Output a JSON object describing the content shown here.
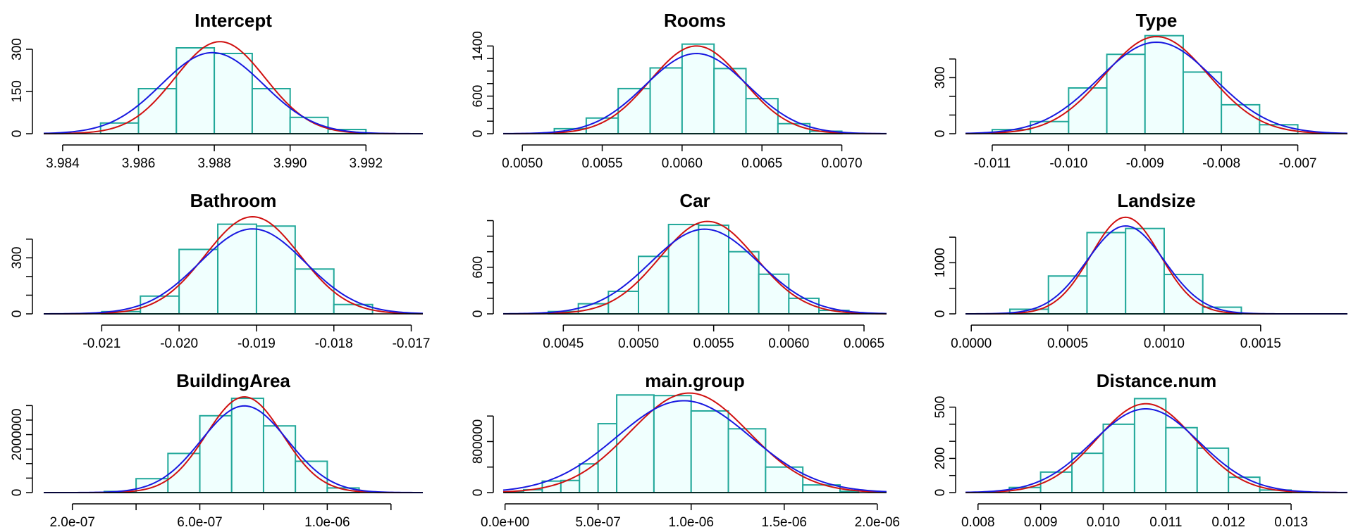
{
  "chart_data": [
    {
      "type": "histogram",
      "title": "Intercept",
      "xlim": [
        3.9835,
        3.9935
      ],
      "ylim": [
        0,
        345
      ],
      "x_ticks": [
        3.984,
        3.986,
        3.988,
        3.99,
        3.992
      ],
      "x_tick_labels": [
        "3.984",
        "3.986",
        "3.988",
        "3.990",
        "3.992"
      ],
      "y_ticks": [
        0,
        150,
        300
      ],
      "y_tick_labels": [
        "0",
        "150",
        "300"
      ],
      "bins": [
        {
          "x0": 3.985,
          "x1": 3.986,
          "count": 38
        },
        {
          "x0": 3.986,
          "x1": 3.987,
          "count": 160
        },
        {
          "x0": 3.987,
          "x1": 3.988,
          "count": 305
        },
        {
          "x0": 3.988,
          "x1": 3.989,
          "count": 285
        },
        {
          "x0": 3.989,
          "x1": 3.99,
          "count": 160
        },
        {
          "x0": 3.99,
          "x1": 3.991,
          "count": 58
        },
        {
          "x0": 3.991,
          "x1": 3.992,
          "count": 15
        }
      ],
      "curves": [
        {
          "color": "#d01010",
          "mean": 3.98815,
          "sd": 0.00119,
          "peak": 327
        },
        {
          "color": "#1818e0",
          "mean": 3.98795,
          "sd": 0.00135,
          "peak": 288
        }
      ]
    },
    {
      "type": "histogram",
      "title": "Rooms",
      "xlim": [
        0.00488,
        0.00728
      ],
      "ylim": [
        0,
        1550
      ],
      "x_ticks": [
        0.005,
        0.0055,
        0.006,
        0.0065,
        0.007
      ],
      "x_tick_labels": [
        "0.0050",
        "0.0055",
        "0.0060",
        "0.0065",
        "0.0070"
      ],
      "y_ticks": [
        0,
        200,
        400,
        600,
        800,
        1000,
        1200,
        1400
      ],
      "y_tick_labels": [
        "0",
        "",
        "",
        "600",
        "",
        "",
        "",
        "1400"
      ],
      "bins": [
        {
          "x0": 0.0052,
          "x1": 0.0054,
          "count": 80
        },
        {
          "x0": 0.0054,
          "x1": 0.0056,
          "count": 250
        },
        {
          "x0": 0.0056,
          "x1": 0.0058,
          "count": 720
        },
        {
          "x0": 0.0058,
          "x1": 0.006,
          "count": 1050
        },
        {
          "x0": 0.006,
          "x1": 0.0062,
          "count": 1430
        },
        {
          "x0": 0.0062,
          "x1": 0.0064,
          "count": 1040
        },
        {
          "x0": 0.0064,
          "x1": 0.0066,
          "count": 560
        },
        {
          "x0": 0.0066,
          "x1": 0.0068,
          "count": 160
        },
        {
          "x0": 0.0068,
          "x1": 0.007,
          "count": 40
        }
      ],
      "curves": [
        {
          "color": "#d01010",
          "mean": 0.00609,
          "sd": 0.00029,
          "peak": 1400
        },
        {
          "color": "#1818e0",
          "mean": 0.00609,
          "sd": 0.00032,
          "peak": 1280
        }
      ]
    },
    {
      "type": "histogram",
      "title": "Type",
      "xlim": [
        -0.01135,
        -0.00635
      ],
      "ylim": [
        0,
        520
      ],
      "x_ticks": [
        -0.011,
        -0.01,
        -0.009,
        -0.008,
        -0.007
      ],
      "x_tick_labels": [
        "-0.011",
        "-0.010",
        "-0.009",
        "-0.008",
        "-0.007"
      ],
      "y_ticks": [
        0,
        100,
        200,
        300,
        400
      ],
      "y_tick_labels": [
        "0",
        "",
        "",
        "300",
        ""
      ],
      "bins": [
        {
          "x0": -0.011,
          "x1": -0.0105,
          "count": 22
        },
        {
          "x0": -0.0105,
          "x1": -0.01,
          "count": 65
        },
        {
          "x0": -0.01,
          "x1": -0.0095,
          "count": 245
        },
        {
          "x0": -0.0095,
          "x1": -0.009,
          "count": 425
        },
        {
          "x0": -0.009,
          "x1": -0.0085,
          "count": 525
        },
        {
          "x0": -0.0085,
          "x1": -0.008,
          "count": 330
        },
        {
          "x0": -0.008,
          "x1": -0.0075,
          "count": 155
        },
        {
          "x0": -0.0075,
          "x1": -0.007,
          "count": 48
        }
      ],
      "curves": [
        {
          "color": "#d01010",
          "mean": -0.00885,
          "sd": 0.00068,
          "peak": 520
        },
        {
          "color": "#1818e0",
          "mean": -0.00885,
          "sd": 0.00075,
          "peak": 490
        }
      ]
    },
    {
      "type": "histogram",
      "title": "Bathroom",
      "xlim": [
        -0.02175,
        -0.01685
      ],
      "ylim": [
        0,
        520
      ],
      "x_ticks": [
        -0.021,
        -0.02,
        -0.019,
        -0.018,
        -0.017
      ],
      "x_tick_labels": [
        "-0.021",
        "-0.020",
        "-0.019",
        "-0.018",
        "-0.017"
      ],
      "y_ticks": [
        0,
        100,
        200,
        300,
        400
      ],
      "y_tick_labels": [
        "0",
        "",
        "",
        "300",
        ""
      ],
      "bins": [
        {
          "x0": -0.021,
          "x1": -0.0205,
          "count": 12
        },
        {
          "x0": -0.0205,
          "x1": -0.02,
          "count": 95
        },
        {
          "x0": -0.02,
          "x1": -0.0195,
          "count": 345
        },
        {
          "x0": -0.0195,
          "x1": -0.019,
          "count": 480
        },
        {
          "x0": -0.019,
          "x1": -0.0185,
          "count": 470
        },
        {
          "x0": -0.0185,
          "x1": -0.018,
          "count": 240
        },
        {
          "x0": -0.018,
          "x1": -0.0175,
          "count": 50
        }
      ],
      "curves": [
        {
          "color": "#d01010",
          "mean": -0.01905,
          "sd": 0.00061,
          "peak": 520
        },
        {
          "color": "#1818e0",
          "mean": -0.01905,
          "sd": 0.00068,
          "peak": 455
        }
      ]
    },
    {
      "type": "histogram",
      "title": "Car",
      "xlim": [
        0.0041,
        0.00665
      ],
      "ylim": [
        0,
        1250
      ],
      "x_ticks": [
        0.0045,
        0.005,
        0.0055,
        0.006,
        0.0065
      ],
      "x_tick_labels": [
        "0.0045",
        "0.0050",
        "0.0055",
        "0.0060",
        "0.0065"
      ],
      "y_ticks": [
        0,
        200,
        400,
        600,
        800,
        1000,
        1200
      ],
      "y_tick_labels": [
        "0",
        "",
        "",
        "600",
        "",
        "",
        ""
      ],
      "bins": [
        {
          "x0": 0.0044,
          "x1": 0.0046,
          "count": 30
        },
        {
          "x0": 0.0046,
          "x1": 0.0048,
          "count": 130
        },
        {
          "x0": 0.0048,
          "x1": 0.005,
          "count": 290
        },
        {
          "x0": 0.005,
          "x1": 0.0052,
          "count": 740
        },
        {
          "x0": 0.0052,
          "x1": 0.0054,
          "count": 1150
        },
        {
          "x0": 0.0054,
          "x1": 0.0056,
          "count": 1140
        },
        {
          "x0": 0.0056,
          "x1": 0.0058,
          "count": 800
        },
        {
          "x0": 0.0058,
          "x1": 0.006,
          "count": 510
        },
        {
          "x0": 0.006,
          "x1": 0.0062,
          "count": 200
        },
        {
          "x0": 0.0062,
          "x1": 0.0064,
          "count": 45
        }
      ],
      "curves": [
        {
          "color": "#d01010",
          "mean": 0.00546,
          "sd": 0.00032,
          "peak": 1190
        },
        {
          "color": "#1818e0",
          "mean": 0.00544,
          "sd": 0.00036,
          "peak": 1090
        }
      ]
    },
    {
      "type": "histogram",
      "title": "Landsize",
      "xlim": [
        -3e-05,
        0.00195
      ],
      "ylim": [
        0,
        1900
      ],
      "x_ticks": [
        0,
        0.0005,
        0.001,
        0.0015
      ],
      "x_tick_labels": [
        "0.0000",
        "0.0005",
        "0.0010",
        "0.0015"
      ],
      "y_ticks": [
        0,
        500,
        1000,
        1500
      ],
      "y_tick_labels": [
        "0",
        "",
        "1000",
        ""
      ],
      "bins": [
        {
          "x0": 0.0002,
          "x1": 0.0004,
          "count": 90
        },
        {
          "x0": 0.0004,
          "x1": 0.0006,
          "count": 740
        },
        {
          "x0": 0.0006,
          "x1": 0.0008,
          "count": 1590
        },
        {
          "x0": 0.0008,
          "x1": 0.001,
          "count": 1670
        },
        {
          "x0": 0.001,
          "x1": 0.0012,
          "count": 770
        },
        {
          "x0": 0.0012,
          "x1": 0.0014,
          "count": 130
        }
      ],
      "curves": [
        {
          "color": "#d01010",
          "mean": 0.0008,
          "sd": 0.00018,
          "peak": 1890
        },
        {
          "color": "#1818e0",
          "mean": 0.0008,
          "sd": 0.0002,
          "peak": 1720
        }
      ]
    },
    {
      "type": "histogram",
      "title": "BuildingArea",
      "xlim": [
        1.1e-07,
        1.3e-06
      ],
      "ylim": [
        0,
        3300000
      ],
      "x_ticks": [
        2e-07,
        4e-07,
        6e-07,
        8e-07,
        1e-06,
        1.2e-06
      ],
      "x_tick_labels": [
        "2.0e-07",
        "",
        "6.0e-07",
        "",
        "1.0e-06",
        ""
      ],
      "y_ticks": [
        0,
        500000,
        1000000,
        1500000,
        2000000,
        2500000,
        3000000
      ],
      "y_tick_labels": [
        "0",
        "",
        "",
        "",
        "2000000",
        "",
        ""
      ],
      "bins": [
        {
          "x0": 3e-07,
          "x1": 4e-07,
          "count": 40000
        },
        {
          "x0": 4e-07,
          "x1": 5e-07,
          "count": 480000
        },
        {
          "x0": 5e-07,
          "x1": 6e-07,
          "count": 1350000
        },
        {
          "x0": 6e-07,
          "x1": 7e-07,
          "count": 2650000
        },
        {
          "x0": 7e-07,
          "x1": 8e-07,
          "count": 3250000
        },
        {
          "x0": 8e-07,
          "x1": 9e-07,
          "count": 2300000
        },
        {
          "x0": 9e-07,
          "x1": 1e-06,
          "count": 1080000
        },
        {
          "x0": 1e-06,
          "x1": 1.1e-06,
          "count": 160000
        }
      ],
      "curves": [
        {
          "color": "#d01010",
          "mean": 7.4e-07,
          "sd": 1.2e-07,
          "peak": 3300000
        },
        {
          "color": "#1818e0",
          "mean": 7.4e-07,
          "sd": 1.35e-07,
          "peak": 2990000
        }
      ]
    },
    {
      "type": "histogram",
      "title": "main.group",
      "xlim": [
        -1e-08,
        2.05e-06
      ],
      "ylim": [
        0,
        1500000
      ],
      "x_ticks": [
        0,
        5e-07,
        1e-06,
        1.5e-06,
        2e-06
      ],
      "x_tick_labels": [
        "0.0e+00",
        "5.0e-07",
        "1.0e-06",
        "1.5e-06",
        "2.0e-06"
      ],
      "y_ticks": [
        0,
        400000,
        800000,
        1200000
      ],
      "y_tick_labels": [
        "0",
        "",
        "800000",
        ""
      ],
      "bins": [
        {
          "x0": 0,
          "x1": 1e-07,
          "count": 10000
        },
        {
          "x0": 1e-07,
          "x1": 2e-07,
          "count": 45000
        },
        {
          "x0": 2e-07,
          "x1": 3e-07,
          "count": 180000
        },
        {
          "x0": 3e-07,
          "x1": 4e-07,
          "count": 190000
        },
        {
          "x0": 4e-07,
          "x1": 5e-07,
          "count": 450000
        },
        {
          "x0": 5e-07,
          "x1": 6e-07,
          "count": 1080000
        },
        {
          "x0": 6e-07,
          "x1": 8e-07,
          "count": 1530000
        },
        {
          "x0": 8e-07,
          "x1": 1e-06,
          "count": 1520000
        },
        {
          "x0": 1e-06,
          "x1": 1.2e-06,
          "count": 1280000
        },
        {
          "x0": 1.2e-06,
          "x1": 1.4e-06,
          "count": 1000000
        },
        {
          "x0": 1.4e-06,
          "x1": 1.6e-06,
          "count": 400000
        },
        {
          "x0": 1.6e-06,
          "x1": 1.8e-06,
          "count": 120000
        },
        {
          "x0": 1.8e-06,
          "x1": 1.9e-06,
          "count": 20000
        }
      ],
      "curves": [
        {
          "color": "#d01010",
          "mean": 9.9e-07,
          "sd": 3.2e-07,
          "peak": 1560000
        },
        {
          "color": "#1818e0",
          "mean": 9.6e-07,
          "sd": 3.6e-07,
          "peak": 1440000
        }
      ]
    },
    {
      "type": "histogram",
      "title": "Distance.num",
      "xlim": [
        0.0078,
        0.0139
      ],
      "ylim": [
        0,
        560
      ],
      "x_ticks": [
        0.008,
        0.009,
        0.01,
        0.011,
        0.012,
        0.013
      ],
      "x_tick_labels": [
        "0.008",
        "0.009",
        "0.010",
        "0.011",
        "0.012",
        "0.013"
      ],
      "y_ticks": [
        0,
        100,
        200,
        300,
        400,
        500
      ],
      "y_tick_labels": [
        "0",
        "",
        "200",
        "",
        "",
        "500"
      ],
      "bins": [
        {
          "x0": 0.0085,
          "x1": 0.009,
          "count": 30
        },
        {
          "x0": 0.009,
          "x1": 0.0095,
          "count": 120
        },
        {
          "x0": 0.0095,
          "x1": 0.01,
          "count": 230
        },
        {
          "x0": 0.01,
          "x1": 0.0105,
          "count": 400
        },
        {
          "x0": 0.0105,
          "x1": 0.011,
          "count": 550
        },
        {
          "x0": 0.011,
          "x1": 0.0115,
          "count": 380
        },
        {
          "x0": 0.0115,
          "x1": 0.012,
          "count": 260
        },
        {
          "x0": 0.012,
          "x1": 0.0125,
          "count": 90
        },
        {
          "x0": 0.0125,
          "x1": 0.013,
          "count": 15
        }
      ],
      "curves": [
        {
          "color": "#d01010",
          "mean": 0.01068,
          "sd": 0.00078,
          "peak": 520
        },
        {
          "color": "#1818e0",
          "mean": 0.01068,
          "sd": 0.00085,
          "peak": 490
        }
      ]
    }
  ]
}
